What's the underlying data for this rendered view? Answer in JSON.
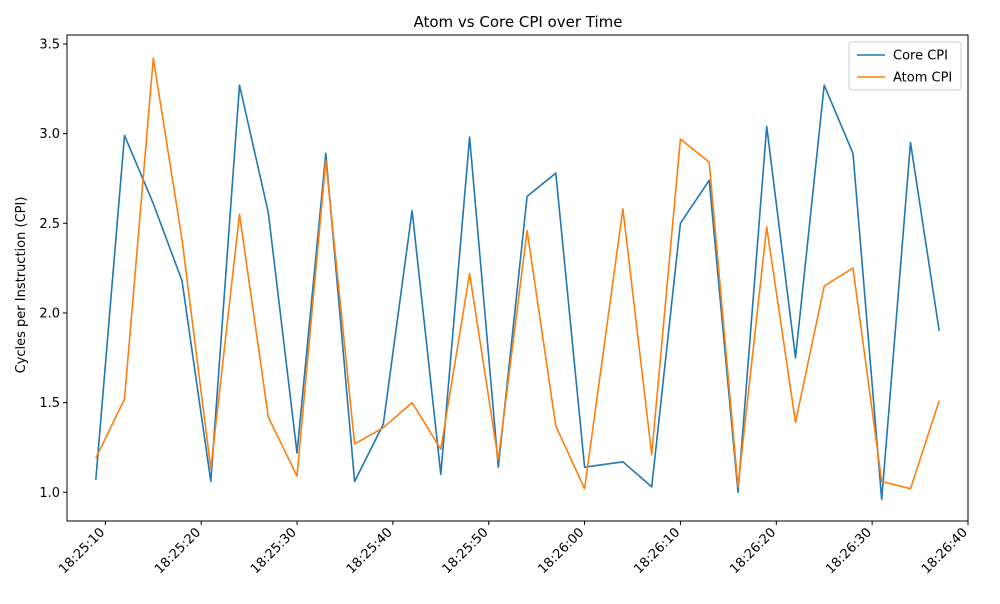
{
  "chart_data": {
    "type": "line",
    "title": "Atom vs Core CPI over Time",
    "xlabel": "",
    "ylabel": "Cycles per Instruction (CPI)",
    "x_tick_labels": [
      "18:25:10",
      "18:25:20",
      "18:25:30",
      "18:25:40",
      "18:25:50",
      "18:26:00",
      "18:26:10",
      "18:26:20",
      "18:26:30",
      "18:26:40"
    ],
    "y_tick_labels": [
      "1.0",
      "1.5",
      "2.0",
      "2.5",
      "3.0",
      "3.5"
    ],
    "xlim": [
      "18:25:06",
      "18:26:40"
    ],
    "ylim": [
      0.84,
      3.55
    ],
    "grid": false,
    "legend_position": "top-right",
    "x": [
      "18:25:09",
      "18:25:12",
      "18:25:15",
      "18:25:18",
      "18:25:21",
      "18:25:24",
      "18:25:27",
      "18:25:30",
      "18:25:33",
      "18:25:36",
      "18:25:39",
      "18:25:42",
      "18:25:45",
      "18:25:48",
      "18:25:51",
      "18:25:54",
      "18:25:57",
      "18:26:00",
      "18:26:04",
      "18:26:07",
      "18:26:10",
      "18:26:13",
      "18:26:16",
      "18:26:19",
      "18:26:22",
      "18:26:25",
      "18:26:28",
      "18:26:31",
      "18:26:34",
      "18:26:37"
    ],
    "series": [
      {
        "name": "Core CPI",
        "color": "#1f77b4",
        "values": [
          1.07,
          2.99,
          2.61,
          2.18,
          1.06,
          3.27,
          2.56,
          1.22,
          2.89,
          1.06,
          1.38,
          2.57,
          1.1,
          2.98,
          1.14,
          2.65,
          2.78,
          1.14,
          1.17,
          1.03,
          2.5,
          2.74,
          1.0,
          3.04,
          1.75,
          3.27,
          2.89,
          0.96,
          2.95,
          1.9
        ]
      },
      {
        "name": "Atom CPI",
        "color": "#ff7f0e",
        "values": [
          1.19,
          1.52,
          3.42,
          2.41,
          1.13,
          2.55,
          1.42,
          1.09,
          2.85,
          1.27,
          1.36,
          1.5,
          1.24,
          2.22,
          1.18,
          2.46,
          1.37,
          1.02,
          2.58,
          1.21,
          2.97,
          2.84,
          1.03,
          2.48,
          1.39,
          2.15,
          2.25,
          1.06,
          1.02,
          1.51
        ]
      }
    ]
  }
}
